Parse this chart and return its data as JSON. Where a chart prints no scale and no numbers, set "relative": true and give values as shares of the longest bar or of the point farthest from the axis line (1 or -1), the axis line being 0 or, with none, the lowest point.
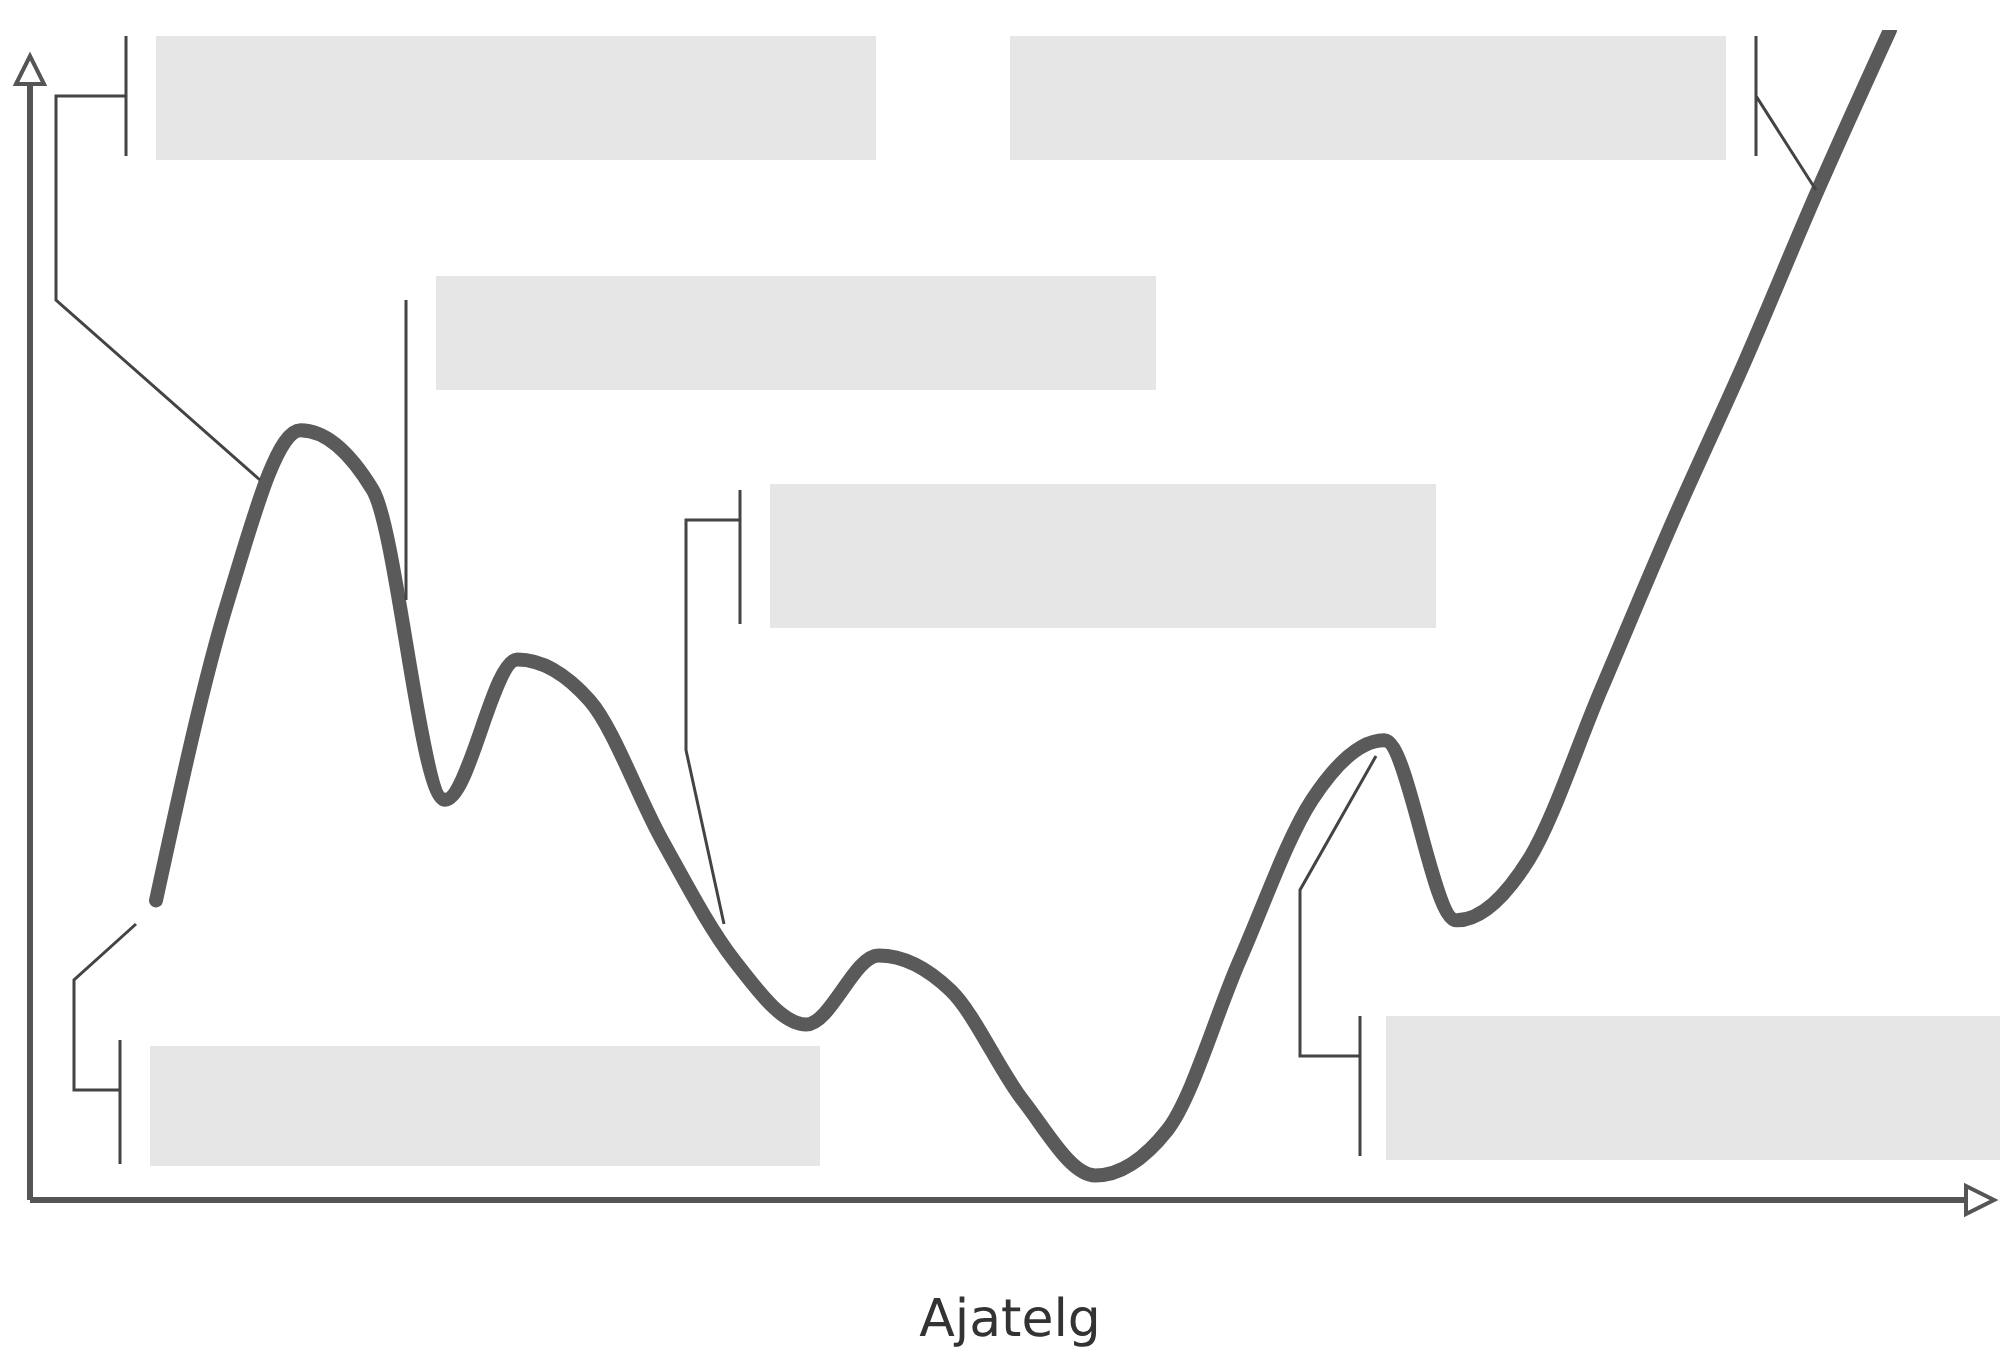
{
  "chart_data": {
    "type": "line",
    "xlabel": "Ajatelg",
    "relative": true,
    "categories": [
      null,
      null,
      null,
      null,
      null,
      null,
      null,
      null,
      null,
      null,
      null,
      null,
      null,
      null,
      null,
      null,
      null,
      null,
      null,
      null,
      null,
      null,
      null,
      null,
      null
    ],
    "series": [
      {
        "color": "#5a5a5a",
        "values": [
          0.256,
          0.513,
          0.658,
          0.607,
          0.342,
          0.462,
          0.427,
          0.308,
          0.205,
          0.15,
          0.209,
          0.179,
          0.085,
          0.021,
          0.06,
          0.205,
          0.342,
          0.393,
          0.239,
          0.291,
          0.436,
          0.581,
          0.718,
          0.863,
          1
        ]
      }
    ],
    "marker": "none",
    "line_style": "solid"
  }
}
